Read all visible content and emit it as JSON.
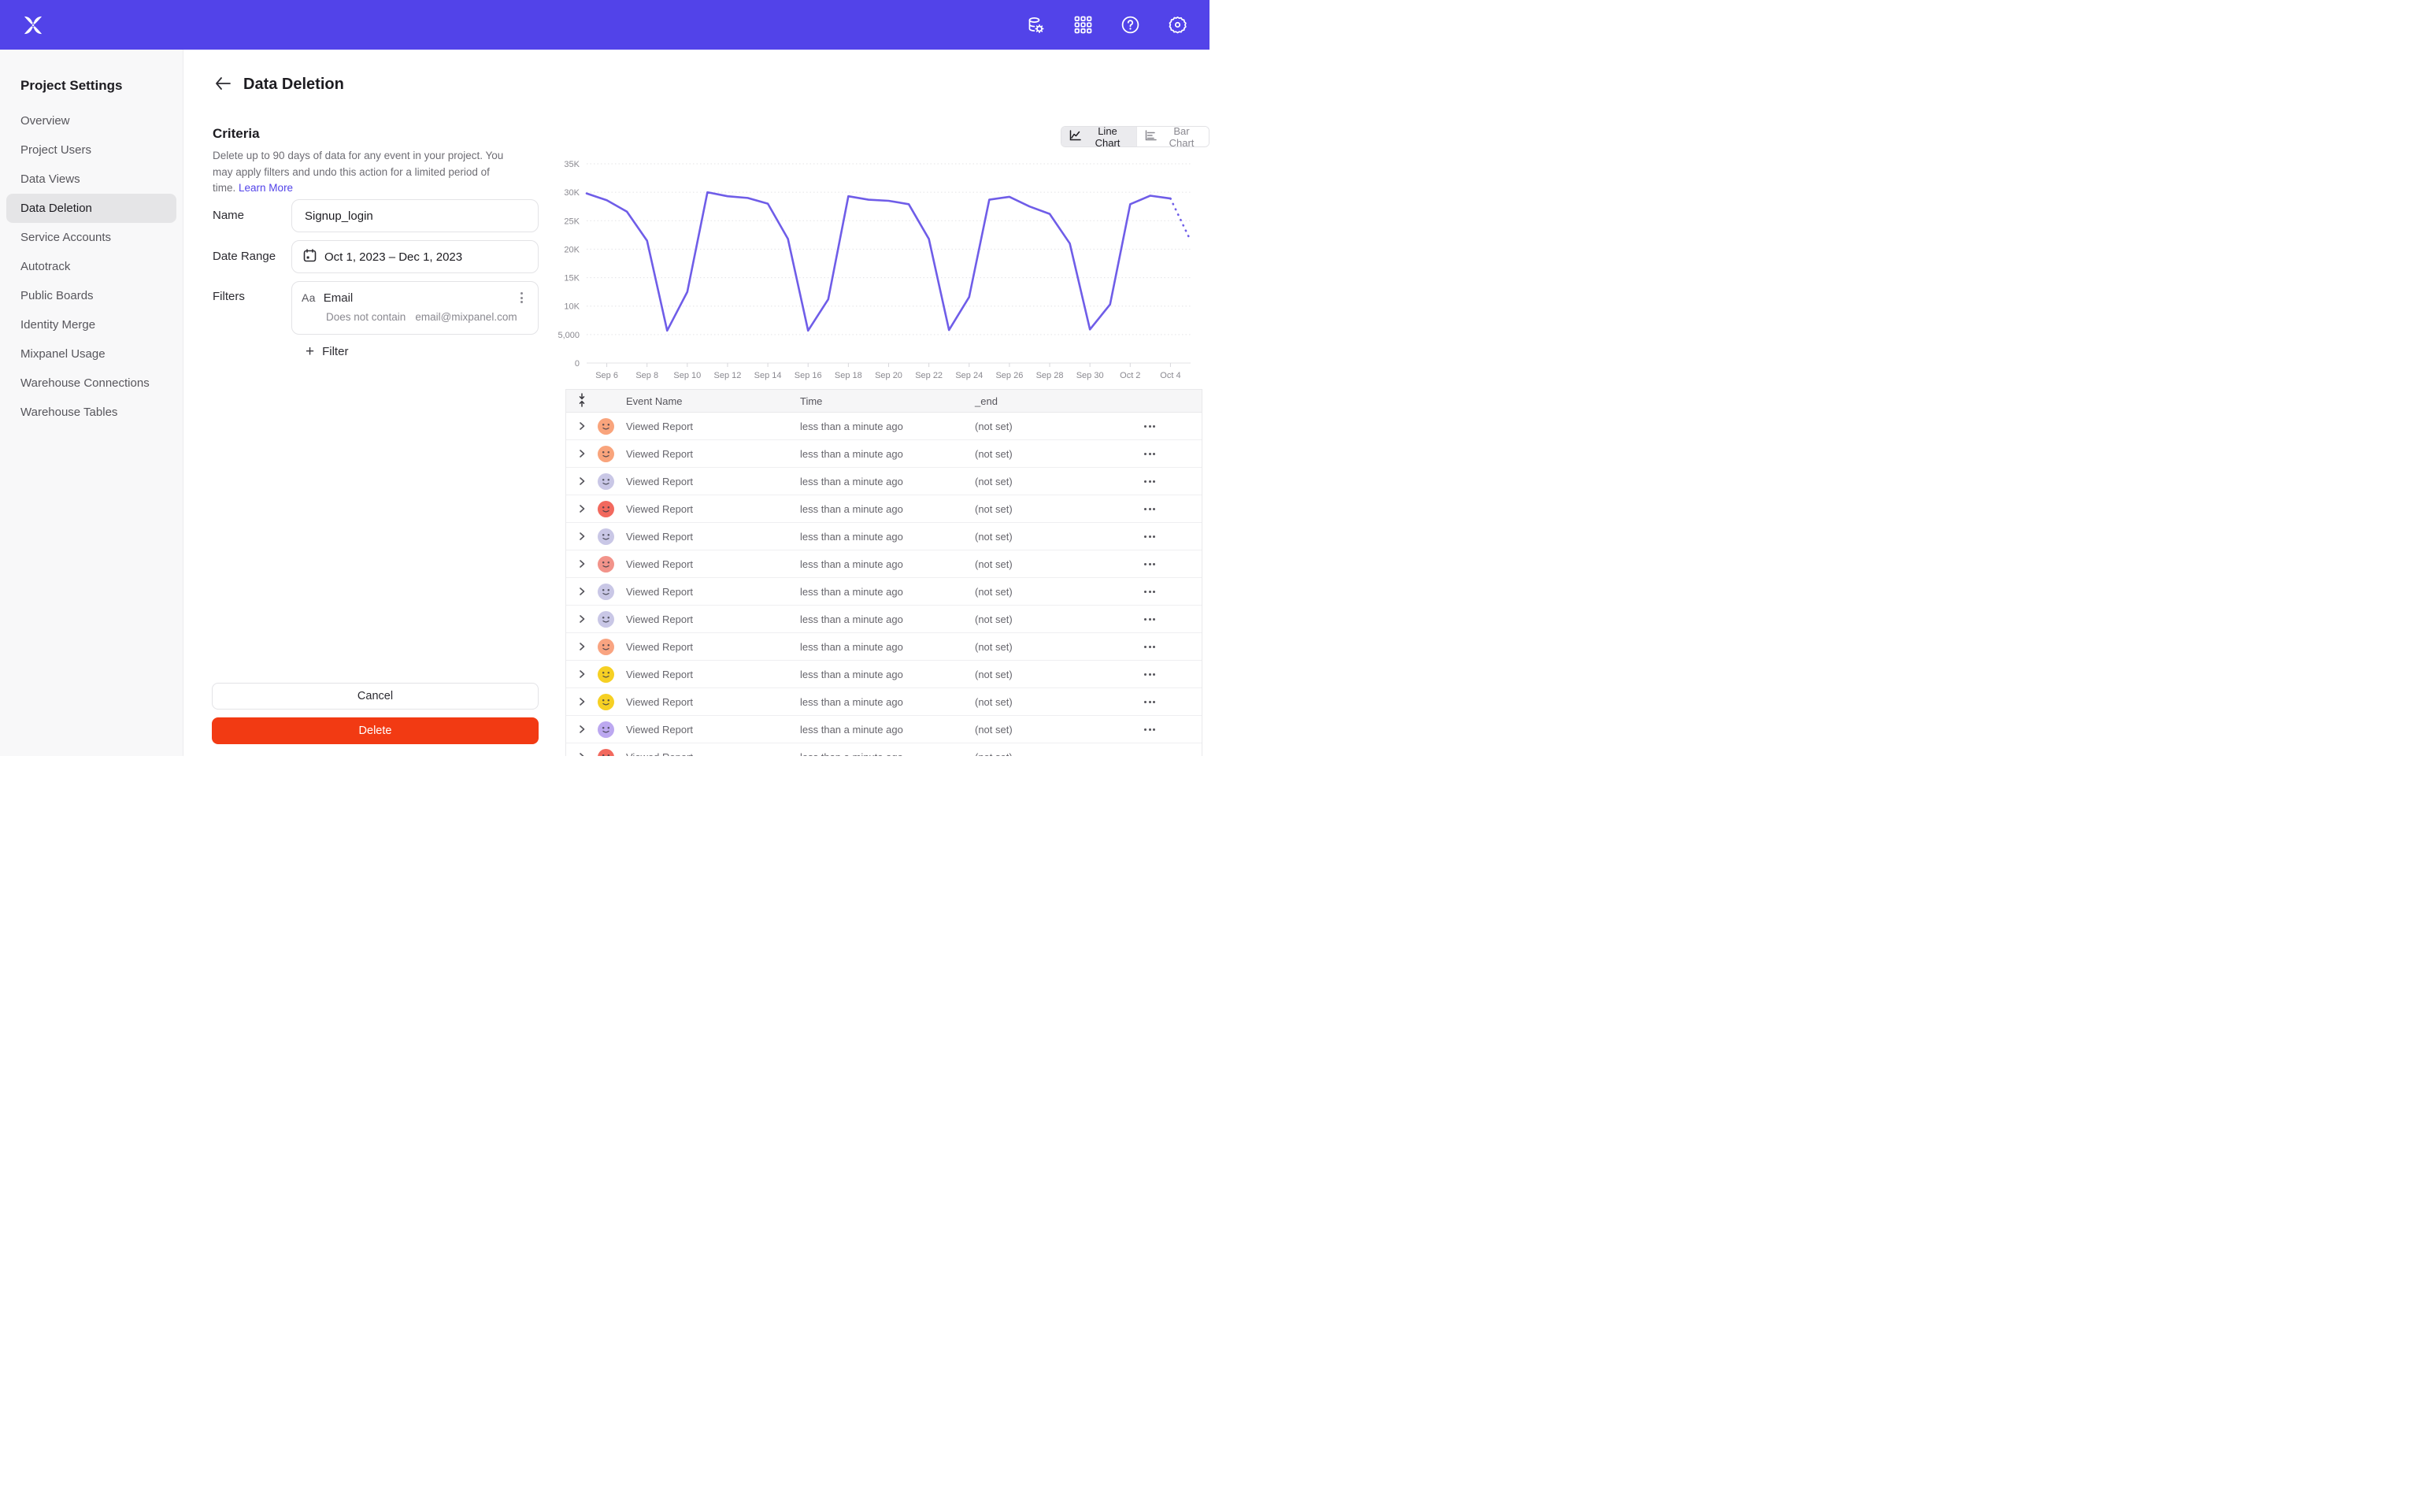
{
  "header": {
    "icons": [
      "data-management",
      "apps-grid",
      "help",
      "settings"
    ],
    "brand_color": "#5243E9"
  },
  "sidebar": {
    "title": "Project Settings",
    "items": [
      {
        "label": "Overview",
        "active": false
      },
      {
        "label": "Project Users",
        "active": false
      },
      {
        "label": "Data Views",
        "active": false
      },
      {
        "label": "Data Deletion",
        "active": true
      },
      {
        "label": "Service Accounts",
        "active": false
      },
      {
        "label": "Autotrack",
        "active": false
      },
      {
        "label": "Public Boards",
        "active": false
      },
      {
        "label": "Identity Merge",
        "active": false
      },
      {
        "label": "Mixpanel Usage",
        "active": false
      },
      {
        "label": "Warehouse Connections",
        "active": false
      },
      {
        "label": "Warehouse Tables",
        "active": false
      }
    ]
  },
  "page": {
    "title": "Data Deletion"
  },
  "criteria": {
    "heading": "Criteria",
    "description": "Delete up to 90 days of data for any event in your project. You may apply filters and undo this action for a limited period of time.",
    "learn_more": "Learn More"
  },
  "form": {
    "name_label": "Name",
    "name_value": "Signup_login",
    "date_range_label": "Date Range",
    "date_range_value": "Oct 1, 2023 – Dec 1, 2023",
    "filters_label": "Filters",
    "filter": {
      "type_badge": "Aa",
      "property": "Email",
      "operator": "Does not contain",
      "value": "email@mixpanel.com"
    },
    "add_filter_plus": "+",
    "add_filter_label": "Filter"
  },
  "actions": {
    "cancel": "Cancel",
    "delete": "Delete",
    "delete_color": "#F23A13"
  },
  "chart_toggle": {
    "line_label": "Line Chart",
    "bar_label": "Bar Chart",
    "selected": "line"
  },
  "chart_data": {
    "type": "line",
    "title": "",
    "xlabel": "",
    "ylabel": "",
    "categories": [
      "Sep 5",
      "Sep 6",
      "Sep 7",
      "Sep 8",
      "Sep 9",
      "Sep 10",
      "Sep 11",
      "Sep 12",
      "Sep 13",
      "Sep 14",
      "Sep 15",
      "Sep 16",
      "Sep 17",
      "Sep 18",
      "Sep 19",
      "Sep 20",
      "Sep 21",
      "Sep 22",
      "Sep 23",
      "Sep 24",
      "Sep 25",
      "Sep 26",
      "Sep 27",
      "Sep 28",
      "Sep 29",
      "Sep 30",
      "Oct 1",
      "Oct 2",
      "Oct 3",
      "Oct 4",
      "Oct 5"
    ],
    "series": [
      {
        "name": "events",
        "values": [
          29800,
          28600,
          26600,
          21500,
          5700,
          12500,
          30000,
          29300,
          29000,
          28000,
          21800,
          5700,
          11200,
          29300,
          28700,
          28500,
          27900,
          21800,
          5800,
          11600,
          28700,
          29200,
          27500,
          26200,
          21000,
          5900,
          10300,
          27900,
          29400,
          28900
        ]
      }
    ],
    "projected_point": {
      "category": "Oct 5",
      "value": 21500,
      "style": "dotted"
    },
    "x_tick_labels": [
      "Sep 6",
      "Sep 8",
      "Sep 10",
      "Sep 12",
      "Sep 14",
      "Sep 16",
      "Sep 18",
      "Sep 20",
      "Sep 22",
      "Sep 24",
      "Sep 26",
      "Sep 28",
      "Sep 30",
      "Oct 2",
      "Oct 4"
    ],
    "y_tick_values": [
      0,
      5000,
      10000,
      15000,
      20000,
      25000,
      30000,
      35000
    ],
    "y_tick_labels": [
      "0",
      "5,000",
      "10K",
      "15K",
      "20K",
      "25K",
      "30K",
      "35K"
    ],
    "ylim": [
      0,
      35000
    ],
    "grid": "horizontal",
    "legend": "none",
    "line_color": "#6F5DE8"
  },
  "table": {
    "headers": [
      "Event Name",
      "Time",
      "_end"
    ],
    "rows": [
      {
        "event": "Viewed Report",
        "time": "less than a minute ago",
        "end": "(not set)",
        "avatar_color": "#F9A47C"
      },
      {
        "event": "Viewed Report",
        "time": "less than a minute ago",
        "end": "(not set)",
        "avatar_color": "#F9A47C"
      },
      {
        "event": "Viewed Report",
        "time": "less than a minute ago",
        "end": "(not set)",
        "avatar_color": "#C9C7E6"
      },
      {
        "event": "Viewed Report",
        "time": "less than a minute ago",
        "end": "(not set)",
        "avatar_color": "#F2695E"
      },
      {
        "event": "Viewed Report",
        "time": "less than a minute ago",
        "end": "(not set)",
        "avatar_color": "#C9C7E6"
      },
      {
        "event": "Viewed Report",
        "time": "less than a minute ago",
        "end": "(not set)",
        "avatar_color": "#F2938A"
      },
      {
        "event": "Viewed Report",
        "time": "less than a minute ago",
        "end": "(not set)",
        "avatar_color": "#C9C7E6"
      },
      {
        "event": "Viewed Report",
        "time": "less than a minute ago",
        "end": "(not set)",
        "avatar_color": "#C9C7E6"
      },
      {
        "event": "Viewed Report",
        "time": "less than a minute ago",
        "end": "(not set)",
        "avatar_color": "#F9A481"
      },
      {
        "event": "Viewed Report",
        "time": "less than a minute ago",
        "end": "(not set)",
        "avatar_color": "#F6D023"
      },
      {
        "event": "Viewed Report",
        "time": "less than a minute ago",
        "end": "(not set)",
        "avatar_color": "#F6D023"
      },
      {
        "event": "Viewed Report",
        "time": "less than a minute ago",
        "end": "(not set)",
        "avatar_color": "#BCA8F0"
      },
      {
        "event": "Viewed Report",
        "time": "less than a minute ago",
        "end": "(not set)",
        "avatar_color": "#F2695E"
      }
    ]
  }
}
